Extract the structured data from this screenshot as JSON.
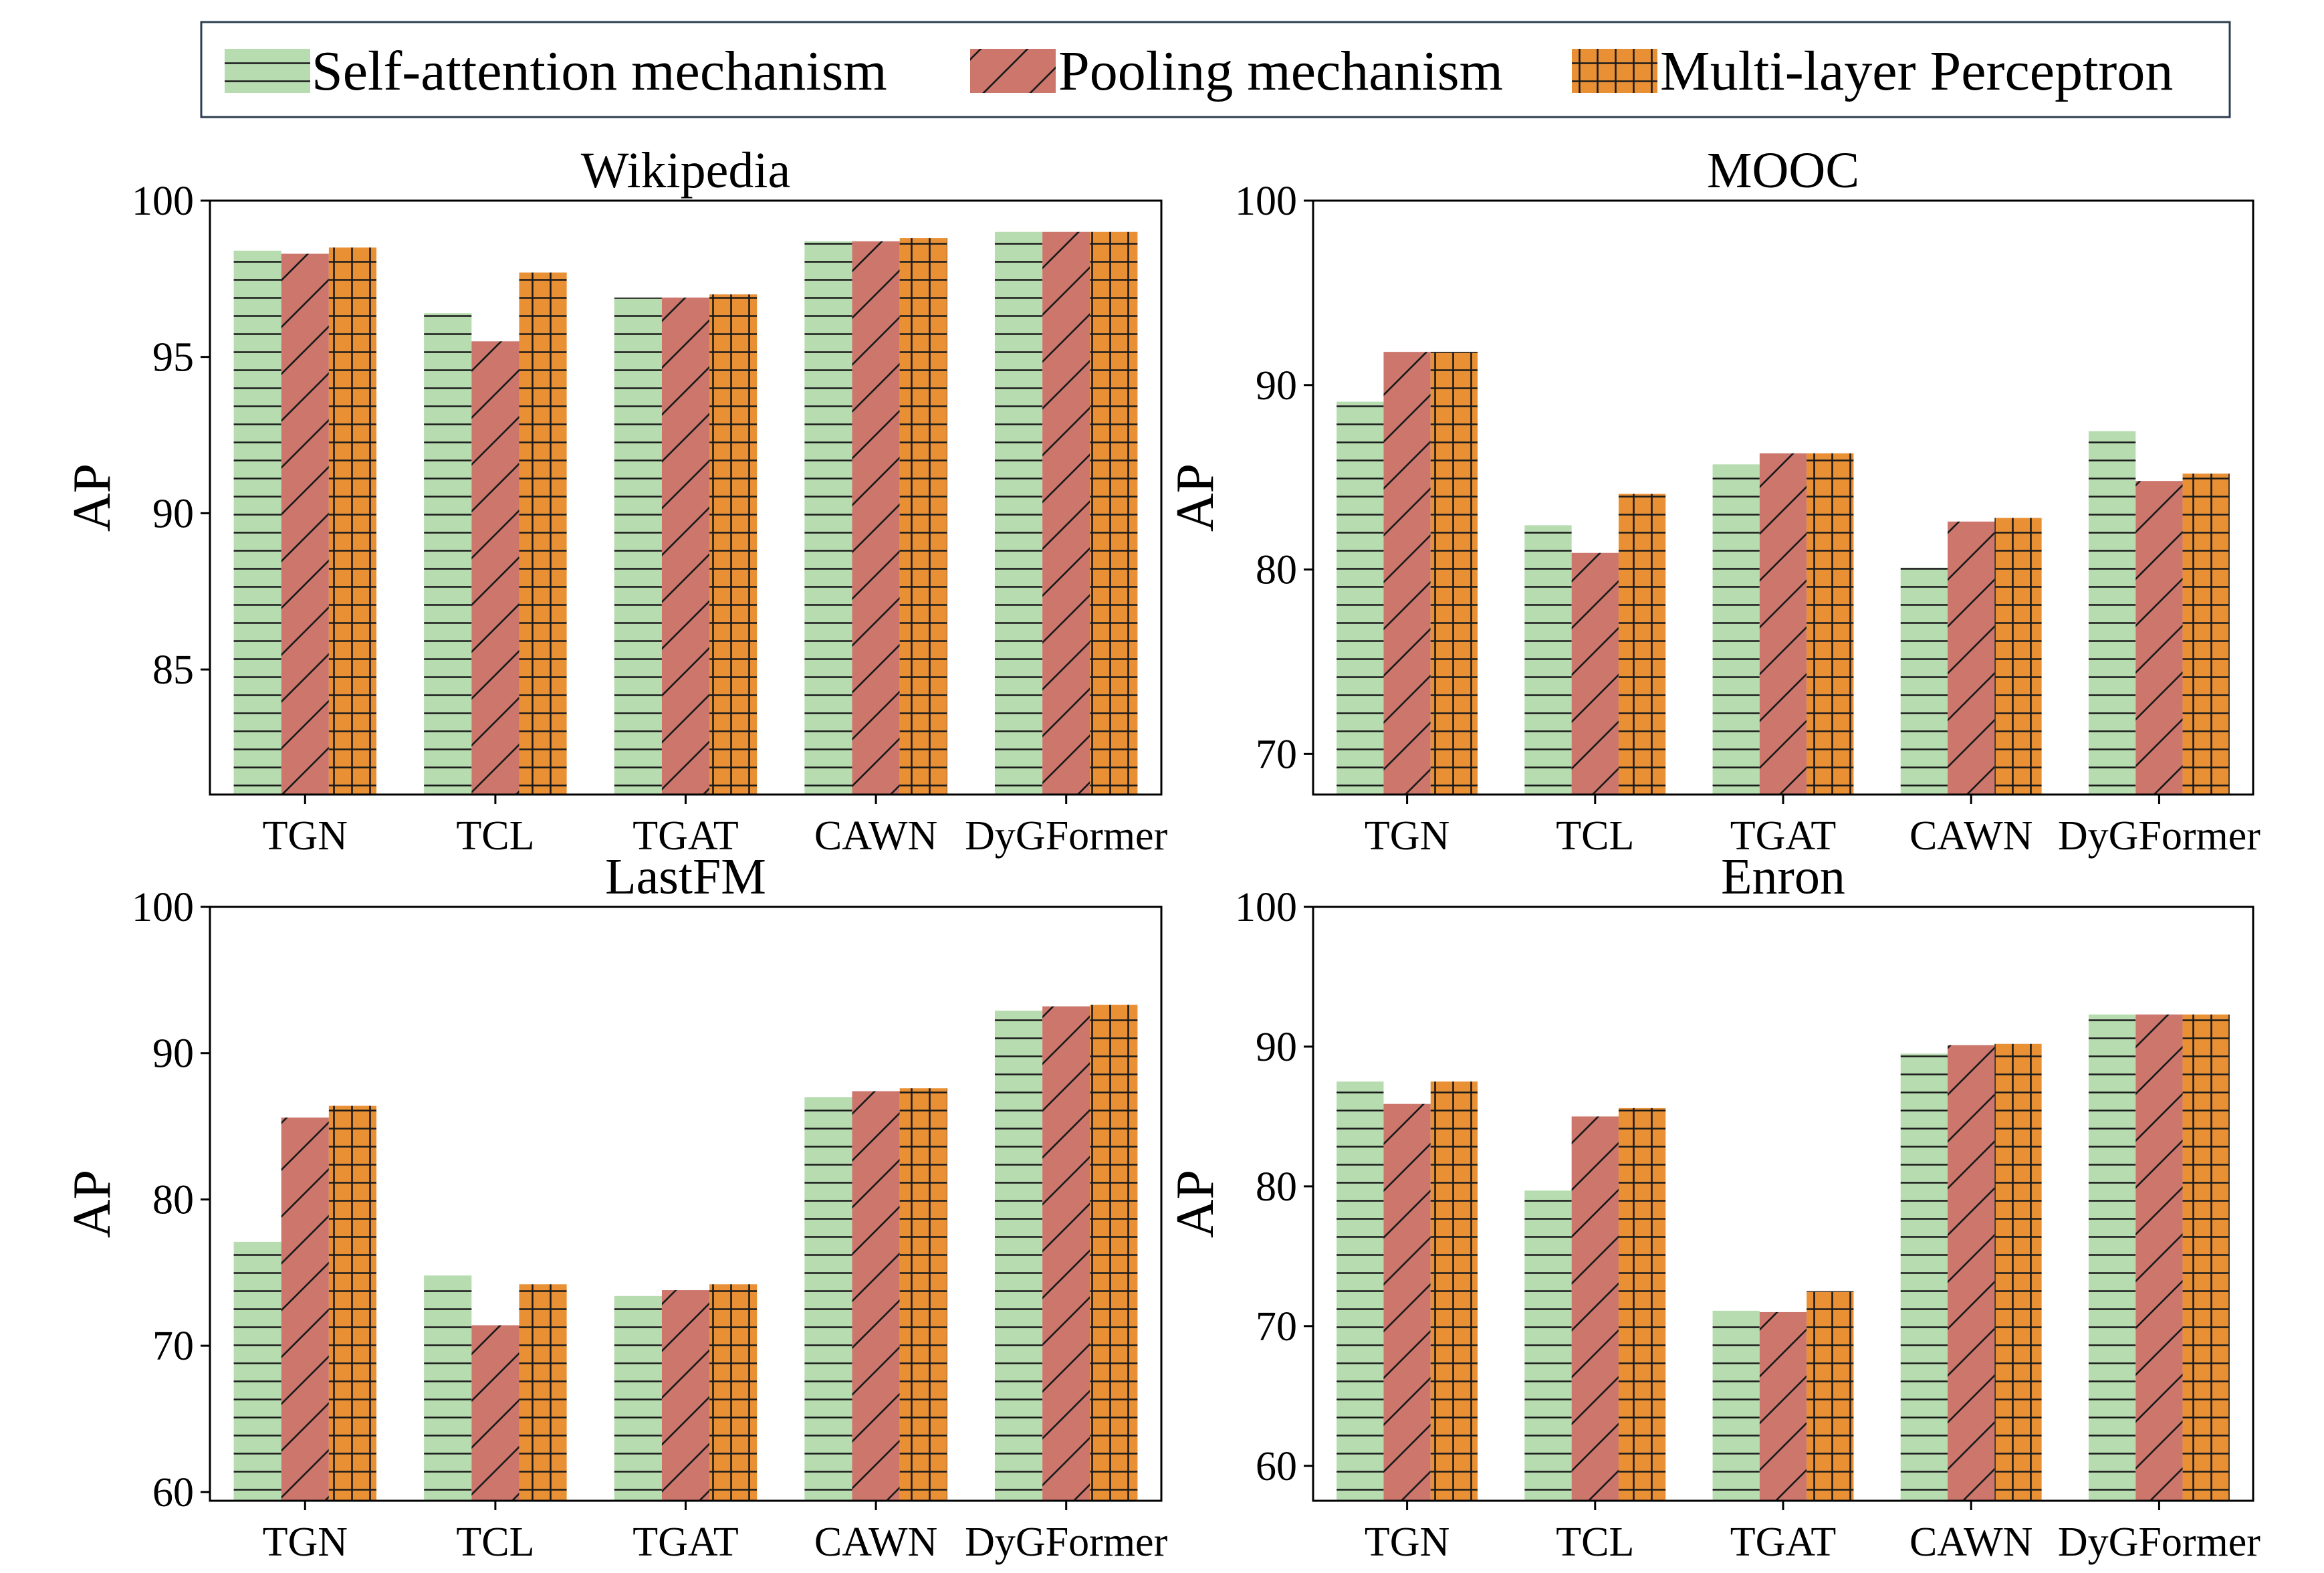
{
  "legend": {
    "series": [
      {
        "name": "Self-attention mechanism",
        "color": "#b6dcb0",
        "hatch": "horizontal"
      },
      {
        "name": "Pooling mechanism",
        "color": "#cc766c",
        "hatch": "diagonal"
      },
      {
        "name": "Multi-layer Perceptron",
        "color": "#e99035",
        "hatch": "grid"
      }
    ]
  },
  "chart_data": [
    {
      "type": "bar",
      "title": "Wikipedia",
      "xlabel": "",
      "ylabel": "AP",
      "ylim": [
        81,
        100
      ],
      "yticks": [
        85,
        90,
        95,
        100
      ],
      "categories": [
        "TGN",
        "TCL",
        "TGAT",
        "CAWN",
        "DyGFormer"
      ],
      "series": [
        {
          "name": "Self-attention mechanism",
          "values": [
            98.4,
            96.4,
            96.9,
            98.7,
            99.0
          ]
        },
        {
          "name": "Pooling mechanism",
          "values": [
            98.3,
            95.5,
            96.9,
            98.7,
            99.0
          ]
        },
        {
          "name": "Multi-layer Perceptron",
          "values": [
            98.5,
            97.7,
            97.0,
            98.8,
            99.0
          ]
        }
      ]
    },
    {
      "type": "bar",
      "title": "MOOC",
      "xlabel": "",
      "ylabel": "AP",
      "ylim": [
        67.8,
        100
      ],
      "yticks": [
        70,
        80,
        90,
        100
      ],
      "categories": [
        "TGN",
        "TCL",
        "TGAT",
        "CAWN",
        "DyGFormer"
      ],
      "series": [
        {
          "name": "Self-attention mechanism",
          "values": [
            89.1,
            82.4,
            85.7,
            80.1,
            87.5
          ]
        },
        {
          "name": "Pooling mechanism",
          "values": [
            91.8,
            80.9,
            86.3,
            82.6,
            84.8
          ]
        },
        {
          "name": "Multi-layer Perceptron",
          "values": [
            91.8,
            84.1,
            86.3,
            82.8,
            85.2
          ]
        }
      ]
    },
    {
      "type": "bar",
      "title": "LastFM",
      "xlabel": "",
      "ylabel": "AP",
      "ylim": [
        59.4,
        100
      ],
      "yticks": [
        60,
        70,
        80,
        90,
        100
      ],
      "categories": [
        "TGN",
        "TCL",
        "TGAT",
        "CAWN",
        "DyGFormer"
      ],
      "series": [
        {
          "name": "Self-attention mechanism",
          "values": [
            77.1,
            74.8,
            73.4,
            87.0,
            92.9
          ]
        },
        {
          "name": "Pooling mechanism",
          "values": [
            85.6,
            71.4,
            73.8,
            87.4,
            93.2
          ]
        },
        {
          "name": "Multi-layer Perceptron",
          "values": [
            86.4,
            74.2,
            74.2,
            87.6,
            93.3
          ]
        }
      ]
    },
    {
      "type": "bar",
      "title": "Enron",
      "xlabel": "",
      "ylabel": "AP",
      "ylim": [
        57.5,
        100
      ],
      "yticks": [
        60,
        70,
        80,
        90,
        100
      ],
      "categories": [
        "TGN",
        "TCL",
        "TGAT",
        "CAWN",
        "DyGFormer"
      ],
      "series": [
        {
          "name": "Self-attention mechanism",
          "values": [
            87.5,
            79.7,
            71.1,
            89.5,
            92.3
          ]
        },
        {
          "name": "Pooling mechanism",
          "values": [
            85.9,
            85.0,
            71.0,
            90.1,
            92.3
          ]
        },
        {
          "name": "Multi-layer Perceptron",
          "values": [
            87.5,
            85.6,
            72.5,
            90.2,
            92.3
          ]
        }
      ]
    }
  ]
}
